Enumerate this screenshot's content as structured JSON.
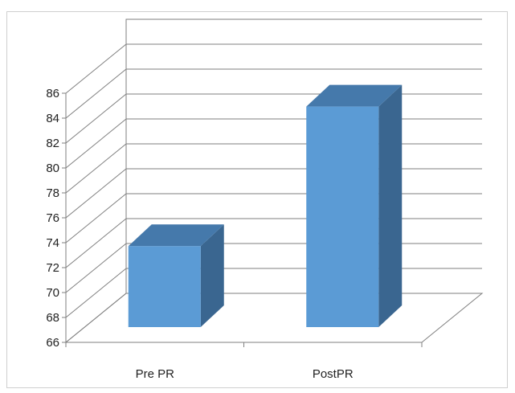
{
  "chart_data": {
    "type": "bar",
    "style": "3d-column",
    "categories": [
      "Pre PR",
      "PostPR"
    ],
    "values": [
      73.6,
      84.8
    ],
    "ylim": [
      66,
      86
    ],
    "ytick_step": 2,
    "yticks": [
      "66",
      "68",
      "70",
      "72",
      "74",
      "76",
      "78",
      "80",
      "82",
      "84",
      "86"
    ],
    "title": "",
    "xlabel": "",
    "ylabel": "",
    "grid": true,
    "legend": "none",
    "colors": {
      "bar_front": "#5b9bd5",
      "bar_top": "#4579ab",
      "bar_side": "#3a6690",
      "gridline": "#7f7f7f"
    }
  }
}
